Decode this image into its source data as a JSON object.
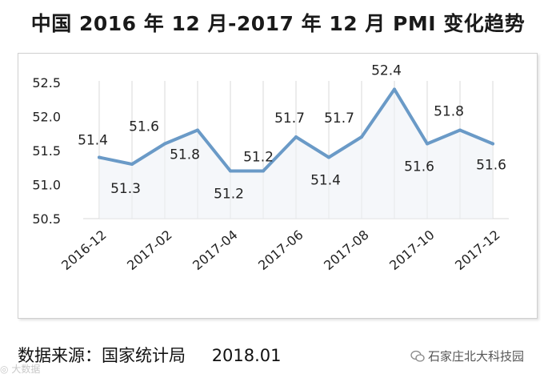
{
  "title": "中国 2016 年 12 月-2017 年 12 月 PMI 变化趋势",
  "footer": {
    "source_label": "数据来源：国家统计局",
    "source_date": "2018.01",
    "brand": "石家庄北大科技园",
    "watermark": "大数据"
  },
  "colors": {
    "line": "#6a9ac7",
    "grid": "#d9d9d9",
    "text": "#222222"
  },
  "chart_data": {
    "type": "line",
    "title": "中国 2016 年 12 月-2017 年 12 月 PMI 变化趋势",
    "xlabel": "",
    "ylabel": "",
    "ylim": [
      50.5,
      52.5
    ],
    "y_ticks": [
      "50.5",
      "51.0",
      "51.5",
      "52.0",
      "52.5"
    ],
    "x_tick_labels": [
      "2016-12",
      "2017-02",
      "2017-04",
      "2017-06",
      "2017-08",
      "2017-10",
      "2017-12"
    ],
    "grid": "vertical",
    "legend": "none",
    "series": [
      {
        "values": [
          51.4,
          51.3,
          51.6,
          51.8,
          51.2,
          51.2,
          51.7,
          51.4,
          51.7,
          52.4,
          51.6,
          51.8,
          51.6
        ],
        "labels": [
          "51.4",
          "51.3",
          "51.6",
          "51.8",
          "51.2",
          "51.2",
          "51.7",
          "51.4",
          "51.7",
          "52.4",
          "51.6",
          "51.8",
          "51.6"
        ]
      }
    ]
  }
}
